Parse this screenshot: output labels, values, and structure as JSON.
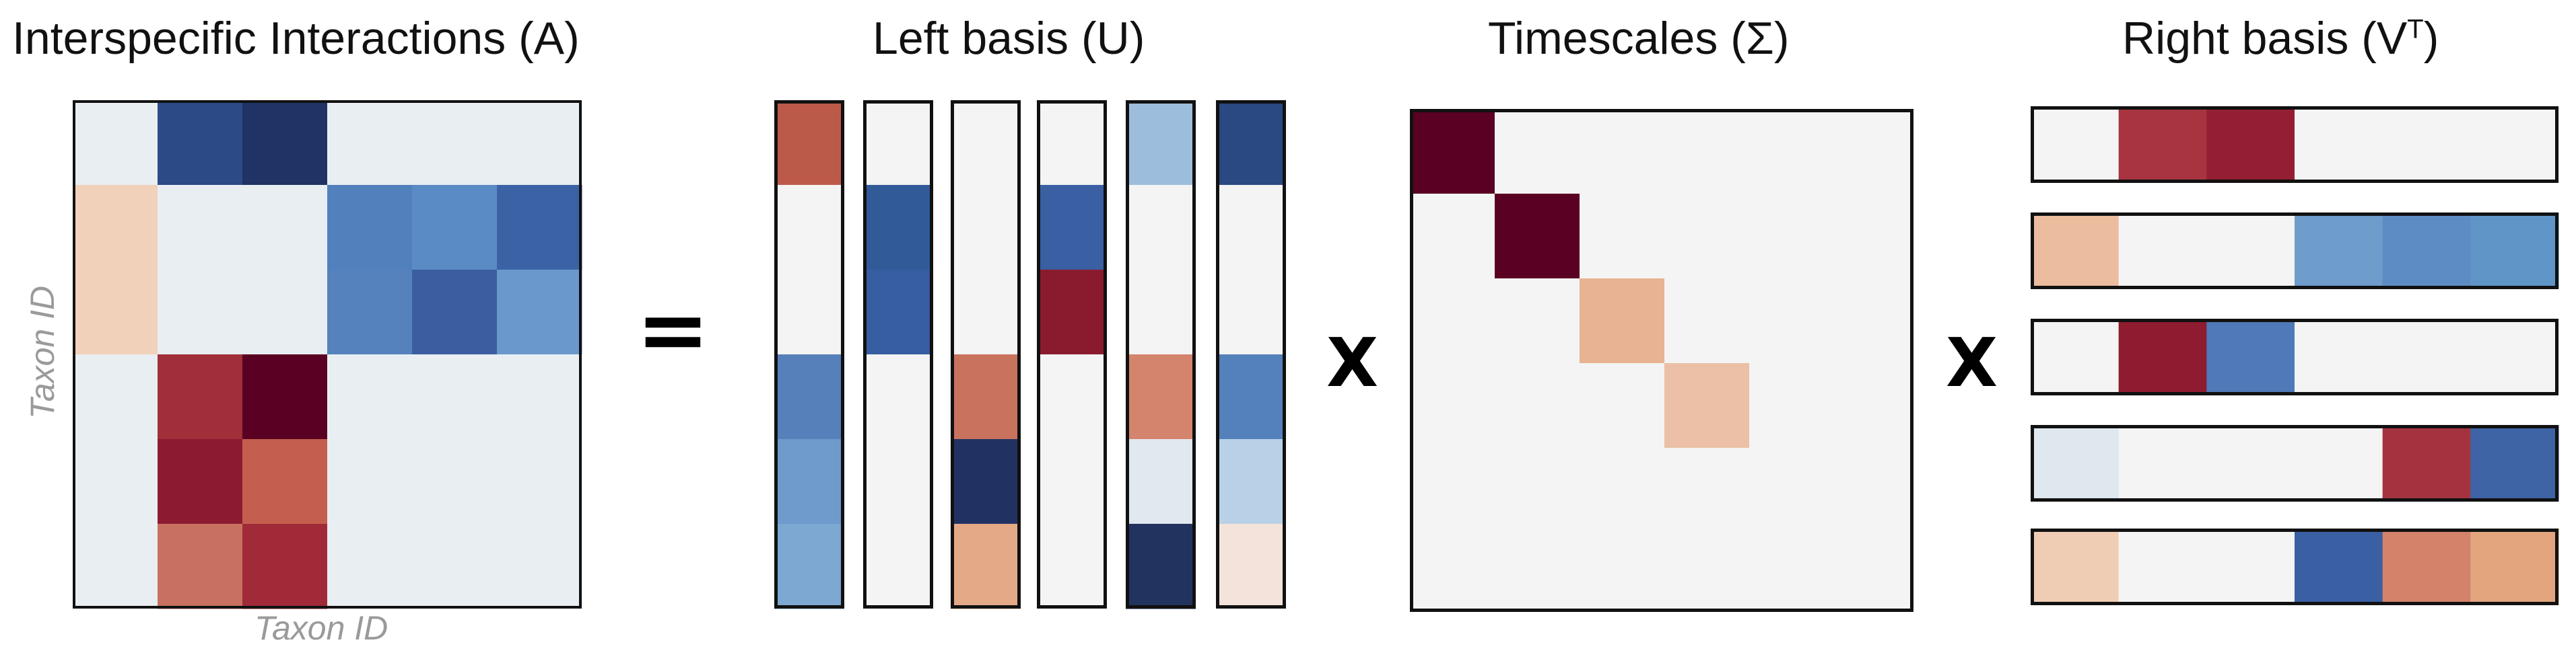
{
  "titles": {
    "interactions": "Interspecific Interactions  (A)",
    "left_basis_pre": "Left basis (U)",
    "timescales": "Timescales (Σ)",
    "right_basis_pre": "Right basis (V",
    "right_basis_sup": "T",
    "right_basis_post": ")"
  },
  "axes": {
    "y_label": "Taxon ID",
    "x_label": "Taxon ID"
  },
  "operators": {
    "equals": "=",
    "times_1": "X",
    "times_2": "X"
  },
  "colors": {
    "neutral": "#e9eef3",
    "light": "#f4f4f4",
    "border": "#111111",
    "interaction_matrix": [
      [
        "#e9eef3",
        "#2b4a86",
        "#1f3364",
        "#e9eef3",
        "#e9eef3",
        "#e9eef3"
      ],
      [
        "#f2d1bb",
        "#e9eef3",
        "#e9eef3",
        "#5280bd",
        "#5b8bc4",
        "#3b62a4"
      ],
      [
        "#f2d1bb",
        "#e9eef3",
        "#e9eef3",
        "#5582bd",
        "#3a5ea0",
        "#6a98cc"
      ],
      [
        "#e9eef3",
        "#a12f39",
        "#5a0022",
        "#e9eef3",
        "#e9eef3",
        "#e9eef3"
      ],
      [
        "#e9eef3",
        "#8c1a30",
        "#c45f4f",
        "#e9eef3",
        "#e9eef3",
        "#e9eef3"
      ],
      [
        "#e9eef3",
        "#c87160",
        "#a02a38",
        "#e9eef3",
        "#e9eef3",
        "#e9eef3"
      ]
    ],
    "left_basis_columns": [
      [
        "#bc5a4a",
        "#f4f4f4",
        "#f4f4f4",
        "#5680ba",
        "#6e9bcb",
        "#7ca8d2"
      ],
      [
        "#f4f4f4",
        "#315a99",
        "#365ea0",
        "#f4f4f4",
        "#f4f4f4",
        "#f4f4f4"
      ],
      [
        "#f4f4f4",
        "#f4f4f4",
        "#f4f4f4",
        "#c9735e",
        "#213262",
        "#e4a987"
      ],
      [
        "#f4f4f4",
        "#3a5fa2",
        "#8a1a2e",
        "#f4f4f4",
        "#f4f4f4",
        "#f4f4f4"
      ],
      [
        "#9cbedc",
        "#f4f4f4",
        "#f4f4f4",
        "#d4846d",
        "#e2e8ef",
        "#223360"
      ],
      [
        "#2a4882",
        "#f4f4f4",
        "#f4f4f4",
        "#5480bc",
        "#b8d1e6",
        "#f3e3da"
      ]
    ],
    "timescales_diagonal": [
      "#5a0022",
      "#5a0022",
      "#e8b392",
      "#ebc0a6",
      "#f4f4f4",
      "#f4f4f4"
    ],
    "right_basis_rows": [
      [
        "#f4f4f4",
        "#a83440",
        "#941e33",
        "#f4f4f4",
        "#f4f4f4",
        "#f4f4f4"
      ],
      [
        "#ebbc9e",
        "#f4f4f4",
        "#f4f4f4",
        "#6e9ccb",
        "#5d8cc4",
        "#6095c8"
      ],
      [
        "#f4f4f4",
        "#8e1b2f",
        "#4f79b8",
        "#f4f4f4",
        "#f4f4f4",
        "#f4f4f4"
      ],
      [
        "#dfe7ef",
        "#f4f4f4",
        "#f4f4f4",
        "#f4f4f4",
        "#a5333f",
        "#3e64a6"
      ],
      [
        "#efcdb4",
        "#f4f4f4",
        "#f4f4f4",
        "#3a5fa2",
        "#d4826a",
        "#e2a57e"
      ]
    ]
  }
}
